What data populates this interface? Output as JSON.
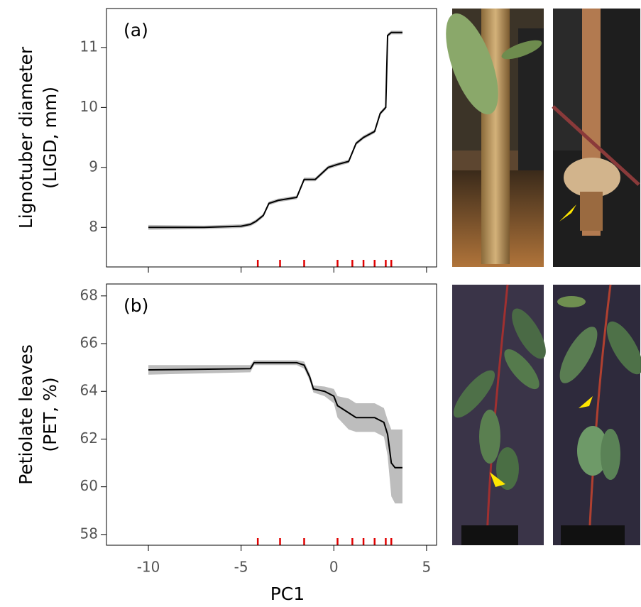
{
  "chart_data": [
    {
      "type": "line",
      "panel_label": "(a)",
      "ylabel": [
        "Lignotuber diameter",
        "(LIGD, mm)"
      ],
      "x": [
        -10,
        -7,
        -5,
        -4.5,
        -4.2,
        -3.8,
        -3.5,
        -3,
        -2,
        -1.6,
        -1,
        -0.3,
        0.2,
        0.8,
        1.2,
        1.6,
        2.2,
        2.5,
        2.8,
        2.9,
        3.1,
        3.7
      ],
      "values": [
        8.0,
        8.0,
        8.02,
        8.05,
        8.1,
        8.2,
        8.4,
        8.45,
        8.5,
        8.8,
        8.8,
        9.0,
        9.05,
        9.1,
        9.4,
        9.5,
        9.6,
        9.9,
        10.0,
        11.2,
        11.25,
        11.25
      ],
      "lower": [
        7.96,
        7.97,
        7.99,
        8.02,
        8.07,
        8.17,
        8.37,
        8.42,
        8.47,
        8.77,
        8.77,
        8.97,
        9.02,
        9.07,
        9.37,
        9.47,
        9.57,
        9.87,
        9.97,
        11.17,
        11.22,
        11.22
      ],
      "upper": [
        8.04,
        8.03,
        8.05,
        8.08,
        8.13,
        8.23,
        8.43,
        8.48,
        8.53,
        8.83,
        8.83,
        9.03,
        9.08,
        9.13,
        9.43,
        9.53,
        9.63,
        9.93,
        10.03,
        11.23,
        11.28,
        11.28
      ],
      "color": "#000000",
      "band_color": "#bdbdbd",
      "rug": [
        -4.1,
        -2.9,
        -1.6,
        0.2,
        1.0,
        1.6,
        2.2,
        2.8,
        3.1
      ],
      "rug_color": "#e00000",
      "xlim": [
        -12.26,
        5.54
      ],
      "ylim": [
        7.34,
        11.65
      ],
      "xticks": [
        -10,
        -5,
        0,
        5
      ],
      "yticks": [
        8,
        9,
        10,
        11
      ],
      "show_xtick_labels": false
    },
    {
      "type": "line",
      "panel_label": "(b)",
      "ylabel": [
        "Petiolate leaves",
        "(PET, %)"
      ],
      "xlabel": "PC1",
      "x": [
        -10,
        -4.5,
        -4.3,
        -2,
        -1.6,
        -1.3,
        -1.1,
        -0.5,
        0,
        0.2,
        0.8,
        1.2,
        2.2,
        2.7,
        2.9,
        3.1,
        3.3,
        3.7
      ],
      "values": [
        64.9,
        64.95,
        65.2,
        65.2,
        65.1,
        64.6,
        64.1,
        64.0,
        63.8,
        63.4,
        63.1,
        62.9,
        62.9,
        62.7,
        62.2,
        61.0,
        60.8,
        60.8
      ],
      "lower": [
        64.7,
        64.8,
        65.1,
        65.1,
        64.95,
        64.45,
        63.95,
        63.8,
        63.5,
        62.9,
        62.4,
        62.3,
        62.3,
        62.1,
        61.3,
        59.6,
        59.3,
        59.3
      ],
      "upper": [
        65.1,
        65.1,
        65.3,
        65.3,
        65.25,
        64.75,
        64.25,
        64.2,
        64.1,
        63.8,
        63.7,
        63.5,
        63.5,
        63.3,
        62.8,
        62.4,
        62.4,
        62.4
      ],
      "color": "#000000",
      "band_color": "#bdbdbd",
      "rug": [
        -4.1,
        -2.9,
        -1.6,
        0.2,
        1.0,
        1.6,
        2.2,
        2.8,
        3.1
      ],
      "rug_color": "#e00000",
      "xlim": [
        -12.26,
        5.54
      ],
      "ylim": [
        57.55,
        68.5
      ],
      "xticks": [
        -10,
        -5,
        0,
        5
      ],
      "yticks": [
        58,
        60,
        62,
        64,
        66,
        68
      ],
      "show_xtick_labels": true
    }
  ]
}
